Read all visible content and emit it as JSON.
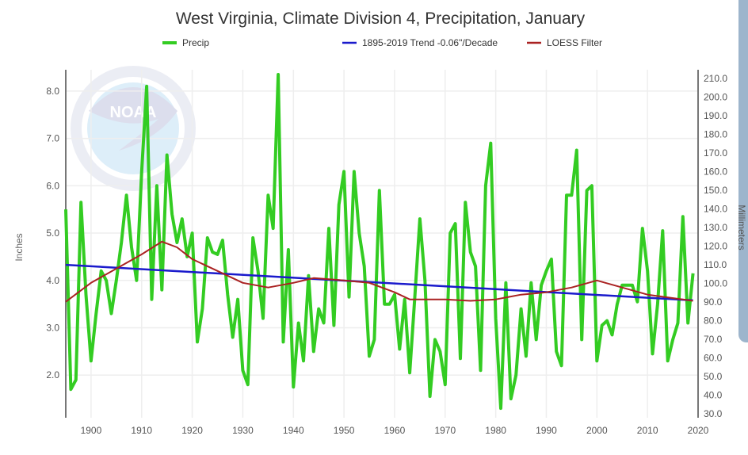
{
  "chart_data": {
    "type": "line",
    "title": "West Virginia, Climate Division 4, Precipitation, January",
    "ylabel": "Inches",
    "y2label": "Millimeters",
    "xlim": [
      1895,
      2020
    ],
    "ylim": [
      1.1,
      8.45
    ],
    "y2lim": [
      27.9,
      214.6
    ],
    "xticks": [
      "1900",
      "1910",
      "1920",
      "1930",
      "1940",
      "1950",
      "1960",
      "1970",
      "1980",
      "1990",
      "2000",
      "2010",
      "2020"
    ],
    "yticks": [
      "2.0",
      "3.0",
      "4.0",
      "5.0",
      "6.0",
      "7.0",
      "8.0"
    ],
    "y2ticks": [
      "30.0",
      "40.0",
      "50.0",
      "60.0",
      "70.0",
      "80.0",
      "90.0",
      "100.0",
      "110.0",
      "120.0",
      "130.0",
      "140.0",
      "150.0",
      "160.0",
      "170.0",
      "180.0",
      "190.0",
      "200.0",
      "210.0"
    ],
    "grid": true,
    "legend_position": "top",
    "watermark": "NOAA",
    "colors": {
      "precip": "#33cc22",
      "trend": "#1a1acc",
      "loess": "#aa2222"
    },
    "series": [
      {
        "name": "Precip",
        "x_start": 1895,
        "values": [
          5.5,
          1.7,
          1.9,
          5.65,
          3.7,
          2.3,
          3.3,
          4.2,
          4.0,
          3.3,
          4.0,
          4.8,
          5.8,
          4.7,
          4.0,
          6.3,
          8.1,
          3.6,
          6.0,
          3.8,
          6.65,
          5.4,
          4.8,
          5.3,
          4.5,
          5.0,
          2.7,
          3.4,
          4.9,
          4.6,
          4.55,
          4.85,
          3.7,
          2.8,
          3.6,
          2.1,
          1.8,
          4.9,
          4.2,
          3.2,
          5.8,
          5.1,
          8.35,
          2.7,
          4.65,
          1.75,
          3.1,
          2.3,
          4.1,
          2.5,
          3.4,
          3.1,
          5.1,
          3.05,
          5.6,
          6.3,
          3.65,
          6.3,
          5.0,
          4.3,
          2.4,
          2.75,
          5.9,
          3.5,
          3.5,
          3.7,
          2.55,
          3.6,
          2.05,
          3.65,
          5.3,
          4.0,
          1.55,
          2.75,
          2.5,
          1.8,
          5.0,
          5.2,
          2.35,
          5.65,
          4.6,
          4.3,
          2.1,
          6.0,
          6.9,
          3.2,
          1.3,
          3.95,
          1.5,
          2.0,
          3.4,
          2.4,
          3.95,
          2.75,
          3.9,
          4.2,
          4.45,
          2.5,
          2.2,
          5.8,
          5.8,
          6.75,
          2.75,
          5.9,
          6.0,
          2.3,
          3.05,
          3.15,
          2.85,
          3.5,
          3.9,
          3.9,
          3.9,
          3.55,
          5.1,
          4.2,
          2.45,
          3.5,
          5.05,
          2.3,
          2.75,
          3.1,
          5.35,
          3.1,
          4.15
        ]
      },
      {
        "name": "1895-2019 Trend -0.06\"/Decade",
        "x": [
          1895,
          2019
        ],
        "values": [
          4.33,
          3.58
        ]
      },
      {
        "name": "LOESS Filter",
        "x": [
          1895,
          1900,
          1905,
          1910,
          1914,
          1917,
          1920,
          1925,
          1930,
          1935,
          1940,
          1944,
          1950,
          1955,
          1960,
          1963,
          1970,
          1975,
          1980,
          1985,
          1990,
          1995,
          2000,
          2005,
          2010,
          2019
        ],
        "values": [
          3.55,
          3.95,
          4.25,
          4.55,
          4.82,
          4.7,
          4.45,
          4.2,
          3.95,
          3.85,
          3.95,
          4.05,
          4.0,
          3.95,
          3.75,
          3.6,
          3.6,
          3.57,
          3.6,
          3.7,
          3.75,
          3.85,
          4.0,
          3.85,
          3.7,
          3.57
        ]
      }
    ]
  }
}
